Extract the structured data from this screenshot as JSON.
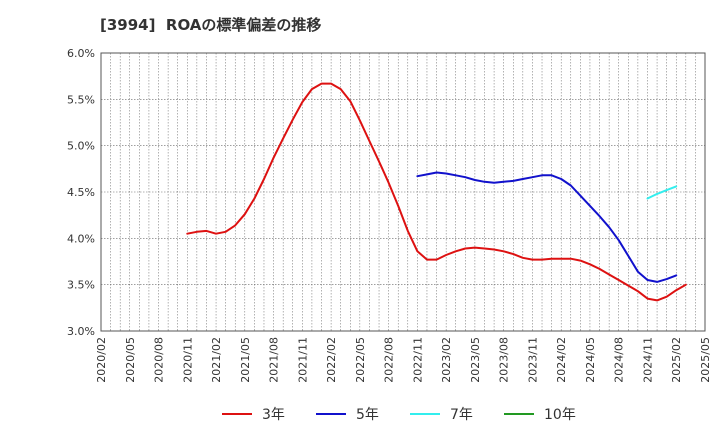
{
  "chart_data": {
    "type": "line",
    "title": "[3994]  ROAの標準偏差の推移",
    "xlabel": "",
    "ylabel": "",
    "ylim": [
      3.0,
      6.0
    ],
    "y_ticks": [
      "3.0%",
      "3.5%",
      "4.0%",
      "4.5%",
      "5.0%",
      "5.5%",
      "6.0%"
    ],
    "y_tick_values": [
      3.0,
      3.5,
      4.0,
      4.5,
      5.0,
      5.5,
      6.0
    ],
    "x_ticks": [
      "2020/02",
      "2020/05",
      "2020/08",
      "2020/11",
      "2021/02",
      "2021/05",
      "2021/08",
      "2021/11",
      "2022/02",
      "2022/05",
      "2022/08",
      "2022/11",
      "2023/02",
      "2023/05",
      "2023/08",
      "2023/11",
      "2024/02",
      "2024/05",
      "2024/08",
      "2024/11",
      "2025/02",
      "2025/05"
    ],
    "x_range_months": [
      0,
      63
    ],
    "grid": true,
    "legend_position": "bottom",
    "series": [
      {
        "name": "3年",
        "color": "#dd1111",
        "x": [
          9,
          10,
          11,
          12,
          13,
          14,
          15,
          16,
          17,
          18,
          19,
          20,
          21,
          22,
          23,
          24,
          25,
          26,
          27,
          28,
          29,
          30,
          31,
          32,
          33,
          34,
          35,
          36,
          37,
          38,
          39,
          40,
          41,
          42,
          43,
          44,
          45,
          46,
          47,
          48,
          49,
          50,
          51,
          52,
          53,
          54,
          55,
          56,
          57,
          58,
          59,
          60,
          61
        ],
        "values": [
          4.05,
          4.07,
          4.08,
          4.05,
          4.07,
          4.14,
          4.26,
          4.43,
          4.64,
          4.87,
          5.08,
          5.28,
          5.47,
          5.61,
          5.67,
          5.67,
          5.61,
          5.48,
          5.27,
          5.05,
          4.83,
          4.6,
          4.35,
          4.08,
          3.86,
          3.77,
          3.77,
          3.82,
          3.86,
          3.89,
          3.9,
          3.89,
          3.88,
          3.86,
          3.83,
          3.79,
          3.77,
          3.77,
          3.78,
          3.78,
          3.78,
          3.76,
          3.72,
          3.67,
          3.61,
          3.55,
          3.49,
          3.43,
          3.35,
          3.33,
          3.37,
          3.44,
          3.5
        ]
      },
      {
        "name": "5年",
        "color": "#1111cc",
        "x": [
          33,
          34,
          35,
          36,
          37,
          38,
          39,
          40,
          41,
          42,
          43,
          44,
          45,
          46,
          47,
          48,
          49,
          50,
          51,
          52,
          53,
          54,
          55,
          56,
          57,
          58,
          59,
          60
        ],
        "values": [
          4.67,
          4.69,
          4.71,
          4.7,
          4.68,
          4.66,
          4.63,
          4.61,
          4.6,
          4.61,
          4.62,
          4.64,
          4.66,
          4.68,
          4.68,
          4.64,
          4.57,
          4.46,
          4.35,
          4.24,
          4.12,
          3.98,
          3.81,
          3.64,
          3.55,
          3.53,
          3.56,
          3.6
        ]
      },
      {
        "name": "7年",
        "color": "#33eeee",
        "x": [
          57,
          58,
          59,
          60
        ],
        "values": [
          4.43,
          4.48,
          4.52,
          4.56
        ]
      },
      {
        "name": "10年",
        "color": "#229922",
        "x": [],
        "values": []
      }
    ]
  }
}
